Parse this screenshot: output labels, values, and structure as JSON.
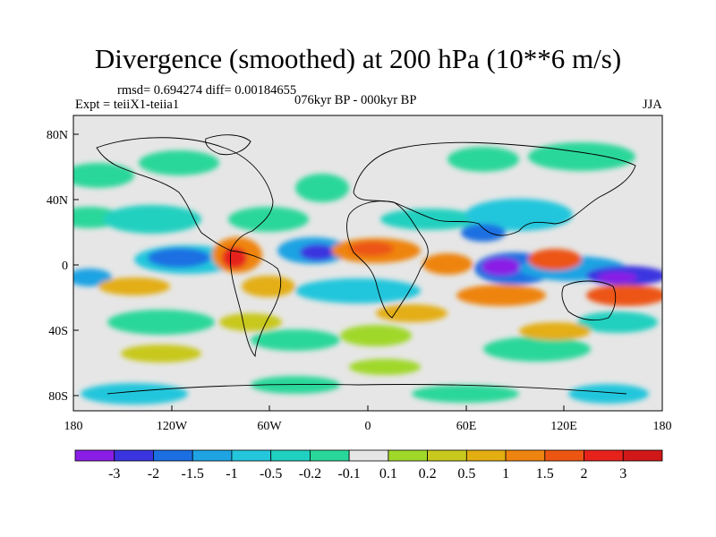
{
  "title": "Divergence (smoothed) at 200 hPa (10**6 m/s)",
  "stats": "rmsd= 0.694274  diff= 0.00184655",
  "experiment": "Expt = teiiX1-teiia1",
  "period": "076kyr BP - 000kyr BP",
  "season": "JJA",
  "lat_ticks": [
    "80N",
    "40N",
    "0",
    "40S",
    "80S"
  ],
  "lon_ticks": [
    "180",
    "120W",
    "60W",
    "0",
    "60E",
    "120E",
    "180"
  ],
  "colorbar": {
    "labels": [
      "-3",
      "-2",
      "-1.5",
      "-1",
      "-0.5",
      "-0.2",
      "-0.1",
      "0.1",
      "0.2",
      "0.5",
      "1",
      "1.5",
      "2",
      "3"
    ],
    "colors": [
      "#8a1ee6",
      "#3a34e0",
      "#1c6fe2",
      "#1ea3e3",
      "#24c6dc",
      "#20d0c0",
      "#2ad79a",
      "#e6e6e6",
      "#a0d82a",
      "#c8c81e",
      "#e3ae12",
      "#ee8410",
      "#ec5512",
      "#e6221c",
      "#d01818"
    ]
  },
  "colors": {
    "background": "#e6e6e6",
    "coast": "#000000"
  }
}
